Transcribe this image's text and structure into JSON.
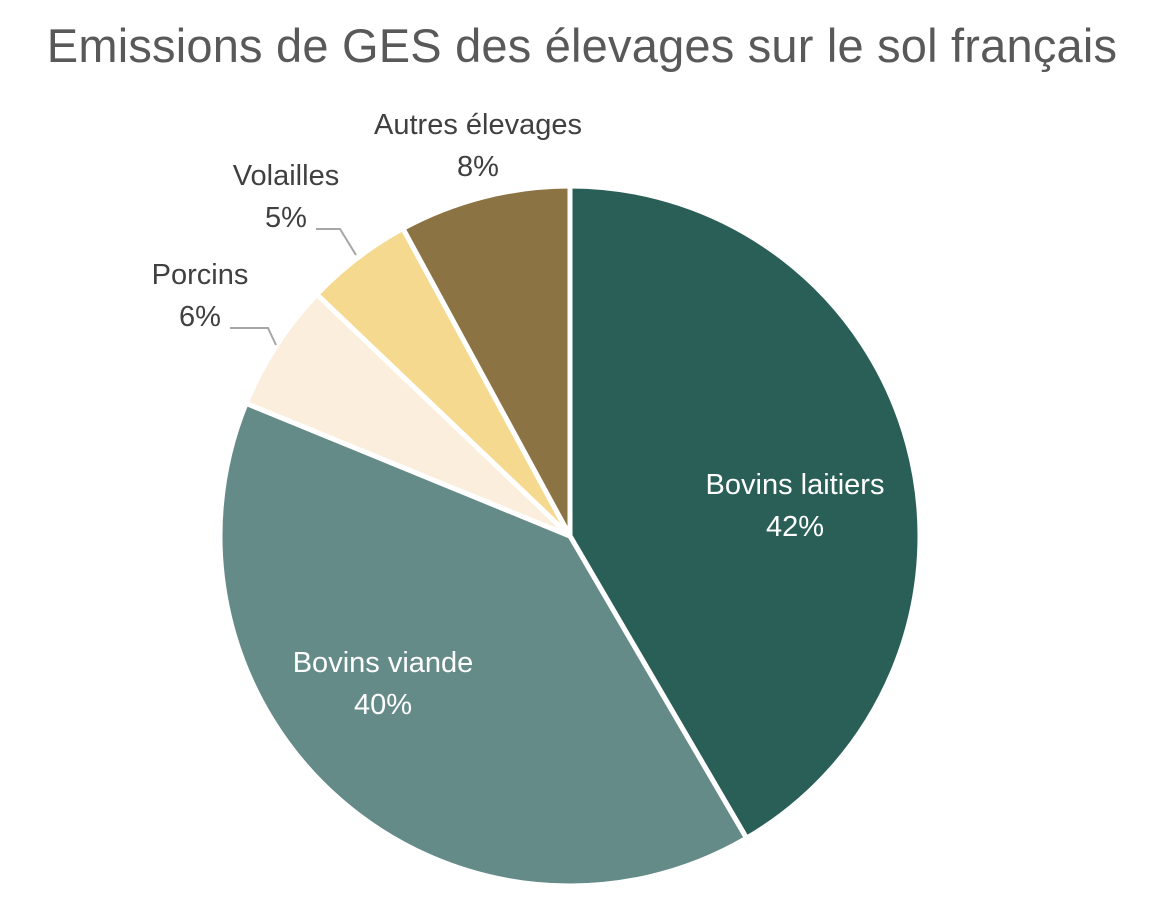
{
  "chart_data": {
    "type": "pie",
    "title": "Emissions de GES des élevages sur le sol français",
    "categories": [
      "Bovins laitiers",
      "Bovins viande",
      "Porcins",
      "Volailles",
      "Autres élevages"
    ],
    "values": [
      42,
      40,
      6,
      5,
      8
    ],
    "value_labels": [
      "42%",
      "40%",
      "6%",
      "5%",
      "8%"
    ],
    "colors": [
      "#2a5f57",
      "#658b89",
      "#fbeedd",
      "#f5d98f",
      "#8b7343"
    ],
    "label_colors": [
      "#ffffff",
      "#ffffff",
      "#404040",
      "#404040",
      "#404040"
    ],
    "start_angle_deg": 0,
    "direction": "clockwise",
    "legend": "none"
  }
}
